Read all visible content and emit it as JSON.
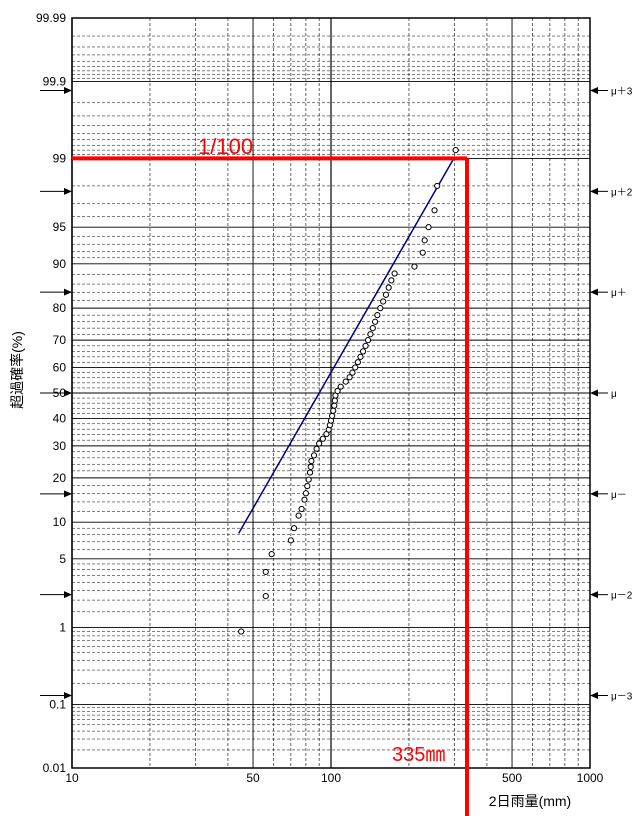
{
  "chart_data": {
    "type": "scatter",
    "x_scale": "log",
    "y_scale": "normal-probability",
    "xlim": [
      10,
      1000
    ],
    "ylim": [
      0.01,
      99.99
    ],
    "xlabel": "2日雨量(mm)",
    "ylabel": "超過確率(%)",
    "x_ticks": [
      {
        "v": 10,
        "label": "10"
      },
      {
        "v": 50,
        "label": "50"
      },
      {
        "v": 100,
        "label": "100"
      },
      {
        "v": 500,
        "label": "500"
      },
      {
        "v": 1000,
        "label": "1000"
      }
    ],
    "y_ticks": [
      {
        "p": 99.99,
        "label": "99.99"
      },
      {
        "p": 99.9,
        "label": "99.9"
      },
      {
        "p": 99,
        "label": "99"
      },
      {
        "p": 95,
        "label": "95"
      },
      {
        "p": 90,
        "label": "90"
      },
      {
        "p": 80,
        "label": "80"
      },
      {
        "p": 70,
        "label": "70"
      },
      {
        "p": 60,
        "label": "60"
      },
      {
        "p": 50,
        "label": "50"
      },
      {
        "p": 40,
        "label": "40"
      },
      {
        "p": 30,
        "label": "30"
      },
      {
        "p": 20,
        "label": "20"
      },
      {
        "p": 10,
        "label": "10"
      },
      {
        "p": 5,
        "label": "5"
      },
      {
        "p": 1,
        "label": "1"
      },
      {
        "p": 0.1,
        "label": "0.1"
      },
      {
        "p": 0.01,
        "label": "0.01"
      }
    ],
    "sigma_marks": [
      {
        "z": 3,
        "label": "μ＋3"
      },
      {
        "z": 2,
        "label": "μ＋2"
      },
      {
        "z": 1,
        "label": "μ＋"
      },
      {
        "z": 0,
        "label": "μ"
      },
      {
        "z": -1,
        "label": "μ－"
      },
      {
        "z": -2,
        "label": "μ－2"
      },
      {
        "z": -3,
        "label": "μ－3"
      }
    ],
    "points": [
      [
        45,
        0.9
      ],
      [
        56,
        2.2
      ],
      [
        56,
        3.8
      ],
      [
        59,
        5.5
      ],
      [
        70,
        7.2
      ],
      [
        72,
        9.0
      ],
      [
        75,
        11.2
      ],
      [
        77,
        12.5
      ],
      [
        79,
        14.5
      ],
      [
        80,
        16.0
      ],
      [
        81,
        17.8
      ],
      [
        82,
        19.5
      ],
      [
        83,
        21.5
      ],
      [
        83.5,
        23.2
      ],
      [
        84,
        25.0
      ],
      [
        86,
        26.8
      ],
      [
        88,
        29.0
      ],
      [
        90,
        30.8
      ],
      [
        93,
        32.5
      ],
      [
        96,
        34.2
      ],
      [
        98,
        35.8
      ],
      [
        99,
        37.5
      ],
      [
        100,
        39.2
      ],
      [
        101,
        41.0
      ],
      [
        102,
        43.0
      ],
      [
        103,
        45.0
      ],
      [
        103.5,
        47.0
      ],
      [
        104,
        49.0
      ],
      [
        106,
        50.8
      ],
      [
        109,
        52.5
      ],
      [
        114,
        54.5
      ],
      [
        118,
        56.2
      ],
      [
        121,
        58.0
      ],
      [
        124,
        60.0
      ],
      [
        127,
        62.0
      ],
      [
        130,
        64.0
      ],
      [
        133,
        66.0
      ],
      [
        136,
        68.0
      ],
      [
        139,
        70.0
      ],
      [
        142,
        72.0
      ],
      [
        145,
        74.0
      ],
      [
        148,
        76.0
      ],
      [
        151,
        78.0
      ],
      [
        155,
        80.0
      ],
      [
        159,
        81.8
      ],
      [
        163,
        83.5
      ],
      [
        167,
        85.2
      ],
      [
        171,
        86.8
      ],
      [
        176,
        88.2
      ],
      [
        210,
        89.5
      ],
      [
        226,
        91.8
      ],
      [
        230,
        93.5
      ],
      [
        238,
        95.0
      ],
      [
        251,
        96.5
      ],
      [
        257,
        98.0
      ],
      [
        303,
        99.2
      ]
    ],
    "fit_line": {
      "x": [
        44,
        298
      ],
      "p": [
        8.2,
        99.0
      ]
    },
    "annotation": {
      "return_period_label": "1/100",
      "probability": 99,
      "value": 335,
      "value_label": "335㎜",
      "color": "#ff0000"
    },
    "marker_color": "#000000",
    "line_color": "#000080",
    "grid": true
  }
}
